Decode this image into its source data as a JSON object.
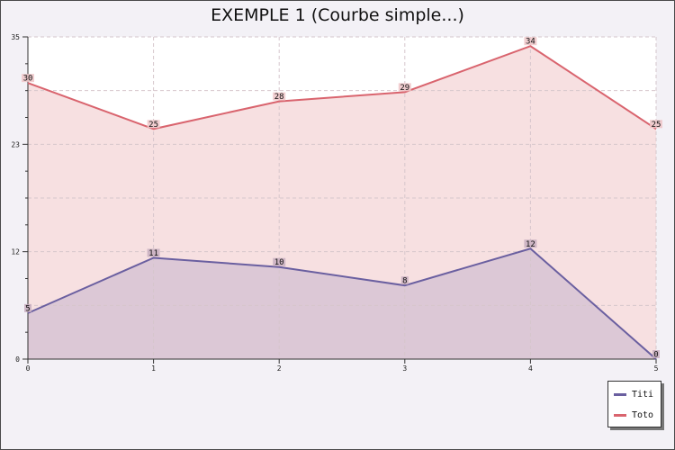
{
  "chart_data": {
    "type": "area",
    "title": "EXEMPLE 1 (Courbe simple...)",
    "x": [
      0,
      1,
      2,
      3,
      4,
      5
    ],
    "x_tick_labels": [
      "0",
      "1",
      "2",
      "3",
      "4",
      "5"
    ],
    "y_tick_labels": [
      "0",
      "12",
      "23",
      "35"
    ],
    "ylim": [
      0,
      35
    ],
    "xlim": [
      0,
      5
    ],
    "grid": true,
    "legend_position": "bottom-right",
    "series": [
      {
        "name": "Titi",
        "values": [
          5,
          11,
          10,
          8,
          12,
          0
        ],
        "labels": [
          "5",
          "11",
          "10",
          "8",
          "12",
          "0"
        ],
        "color": "#6a5fa0",
        "fill": "#dcc8d6",
        "label_bg": "#c8aebf"
      },
      {
        "name": "Toto",
        "values": [
          30,
          25,
          28,
          29,
          34,
          25
        ],
        "labels": [
          "30",
          "25",
          "28",
          "29",
          "34",
          "25"
        ],
        "color": "#d9646e",
        "fill": "#f7e0e1",
        "label_bg": "#efc5c8"
      }
    ]
  }
}
